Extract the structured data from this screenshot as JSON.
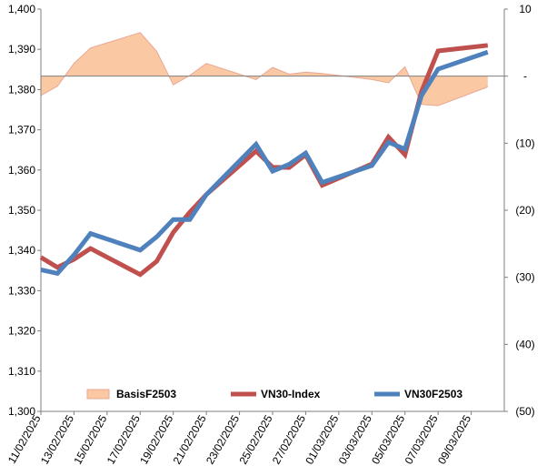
{
  "chart_data": {
    "type": "line",
    "title": "",
    "xlabel": "",
    "ylabel": "",
    "y_left": {
      "ylim": [
        1300,
        1400
      ],
      "ticks": [
        1300,
        1310,
        1320,
        1330,
        1340,
        1350,
        1360,
        1370,
        1380,
        1390,
        1400
      ],
      "tick_labels": [
        "1,300",
        "1,310",
        "1,320",
        "1,330",
        "1,340",
        "1,350",
        "1,360",
        "1,370",
        "1,380",
        "1,390",
        "1,400"
      ]
    },
    "y_right": {
      "ylim": [
        -50,
        10
      ],
      "ticks": [
        10,
        0,
        -10,
        -20,
        -30,
        -40,
        -50
      ],
      "tick_labels": [
        "10",
        "-",
        "(10)",
        "(20)",
        "(30)",
        "(40)",
        "(50)"
      ]
    },
    "x_tick_labels": [
      "11/02/2025",
      "13/02/2025",
      "15/02/2025",
      "17/02/2025",
      "19/02/2025",
      "21/02/2025",
      "23/02/2025",
      "25/02/2025",
      "27/02/2025",
      "01/03/2025",
      "03/03/2025",
      "05/03/2025",
      "07/03/2025",
      "09/03/2025"
    ],
    "x": [
      "11/02/2025",
      "12/02/2025",
      "13/02/2025",
      "14/02/2025",
      "17/02/2025",
      "18/02/2025",
      "19/02/2025",
      "20/02/2025",
      "21/02/2025",
      "24/02/2025",
      "25/02/2025",
      "26/02/2025",
      "27/02/2025",
      "28/02/2025",
      "03/03/2025",
      "04/03/2025",
      "05/03/2025",
      "06/03/2025",
      "07/03/2025",
      "10/03/2025"
    ],
    "series": [
      {
        "name": "BasisF2503",
        "type": "area",
        "axis": "right",
        "color": "#FAC8A3",
        "edge_color": "#E8A896",
        "values": [
          -2.9,
          -1.5,
          1.9,
          4.2,
          6.5,
          3.7,
          -1.3,
          0.1,
          1.9,
          -0.5,
          1.3,
          0.3,
          0.6,
          0.4,
          -0.5,
          -1.0,
          1.4,
          -4.2,
          -4.4,
          -1.6
        ]
      },
      {
        "name": "VN30-Index",
        "type": "line",
        "axis": "left",
        "color": "#C0504D",
        "values": [
          1338.3,
          1335.8,
          1337.8,
          1340.5,
          1334.0,
          1337.3,
          1344.5,
          1349.5,
          1353.9,
          1364.7,
          1360.7,
          1360.6,
          1363.8,
          1356.2,
          1361.5,
          1368.2,
          1363.8,
          1379.5,
          1389.6,
          1391.0
        ]
      },
      {
        "name": "VN30F2503",
        "type": "line",
        "axis": "left",
        "color": "#4F81BD",
        "values": [
          1335.2,
          1334.3,
          1338.9,
          1344.2,
          1340.1,
          1343.4,
          1347.7,
          1347.7,
          1353.9,
          1366.4,
          1359.7,
          1361.4,
          1364.2,
          1356.9,
          1361.1,
          1366.9,
          1365.2,
          1378.5,
          1385.1,
          1389.3
        ]
      }
    ],
    "grid": false,
    "legend_position": "bottom-inside"
  }
}
